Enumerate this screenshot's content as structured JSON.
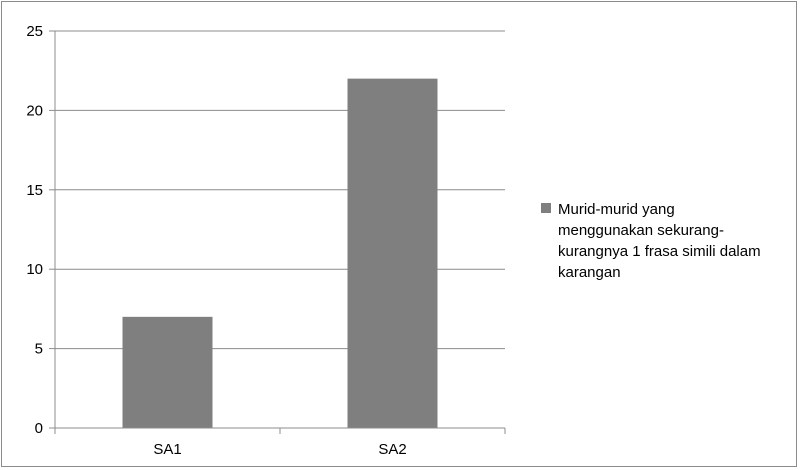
{
  "chart_data": {
    "type": "bar",
    "categories": [
      "SA1",
      "SA2"
    ],
    "series": [
      {
        "name": "Murid-murid yang menggunakan sekurang-kurangnya 1 frasa simili dalam karangan",
        "values": [
          7,
          22
        ],
        "color": "#7f7f7f"
      }
    ],
    "ylim": [
      0,
      25
    ],
    "yticks": [
      0,
      5,
      10,
      15,
      20,
      25
    ],
    "grid": true,
    "legend_position": "right",
    "legend_lines": [
      "Murid-murid yang",
      "menggunakan sekurang-",
      "kurangnya 1 frasa simili dalam",
      "karangan"
    ]
  }
}
